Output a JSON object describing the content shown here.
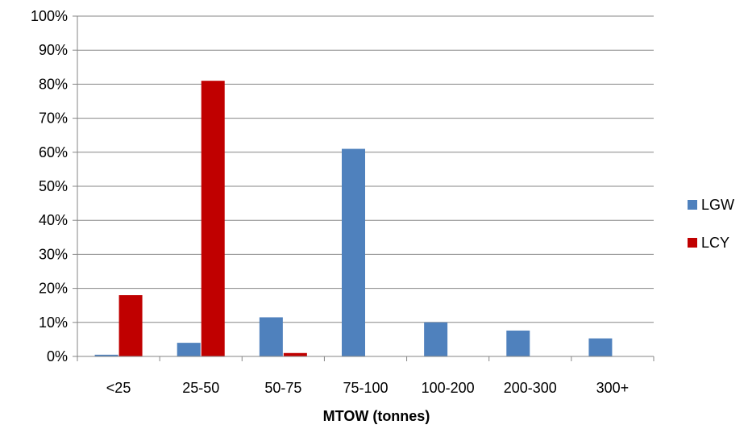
{
  "chart_data": {
    "type": "bar",
    "xlabel": "MTOW (tonnes)",
    "categories": [
      "<25",
      "25-50",
      "50-75",
      "75-100",
      "100-200",
      "200-300",
      "300+"
    ],
    "series": [
      {
        "name": "LGW",
        "color": "#4f81bd",
        "values": [
          0.5,
          4,
          11.5,
          61,
          10,
          7.6,
          5.3
        ]
      },
      {
        "name": "LCY",
        "color": "#c00000",
        "values": [
          18,
          81,
          1,
          0,
          0,
          0,
          0
        ]
      }
    ],
    "ylim": [
      0,
      100
    ],
    "yticks": [
      "0%",
      "10%",
      "20%",
      "30%",
      "40%",
      "50%",
      "60%",
      "70%",
      "80%",
      "90%",
      "100%"
    ],
    "grid": true,
    "legend_position": "right"
  }
}
